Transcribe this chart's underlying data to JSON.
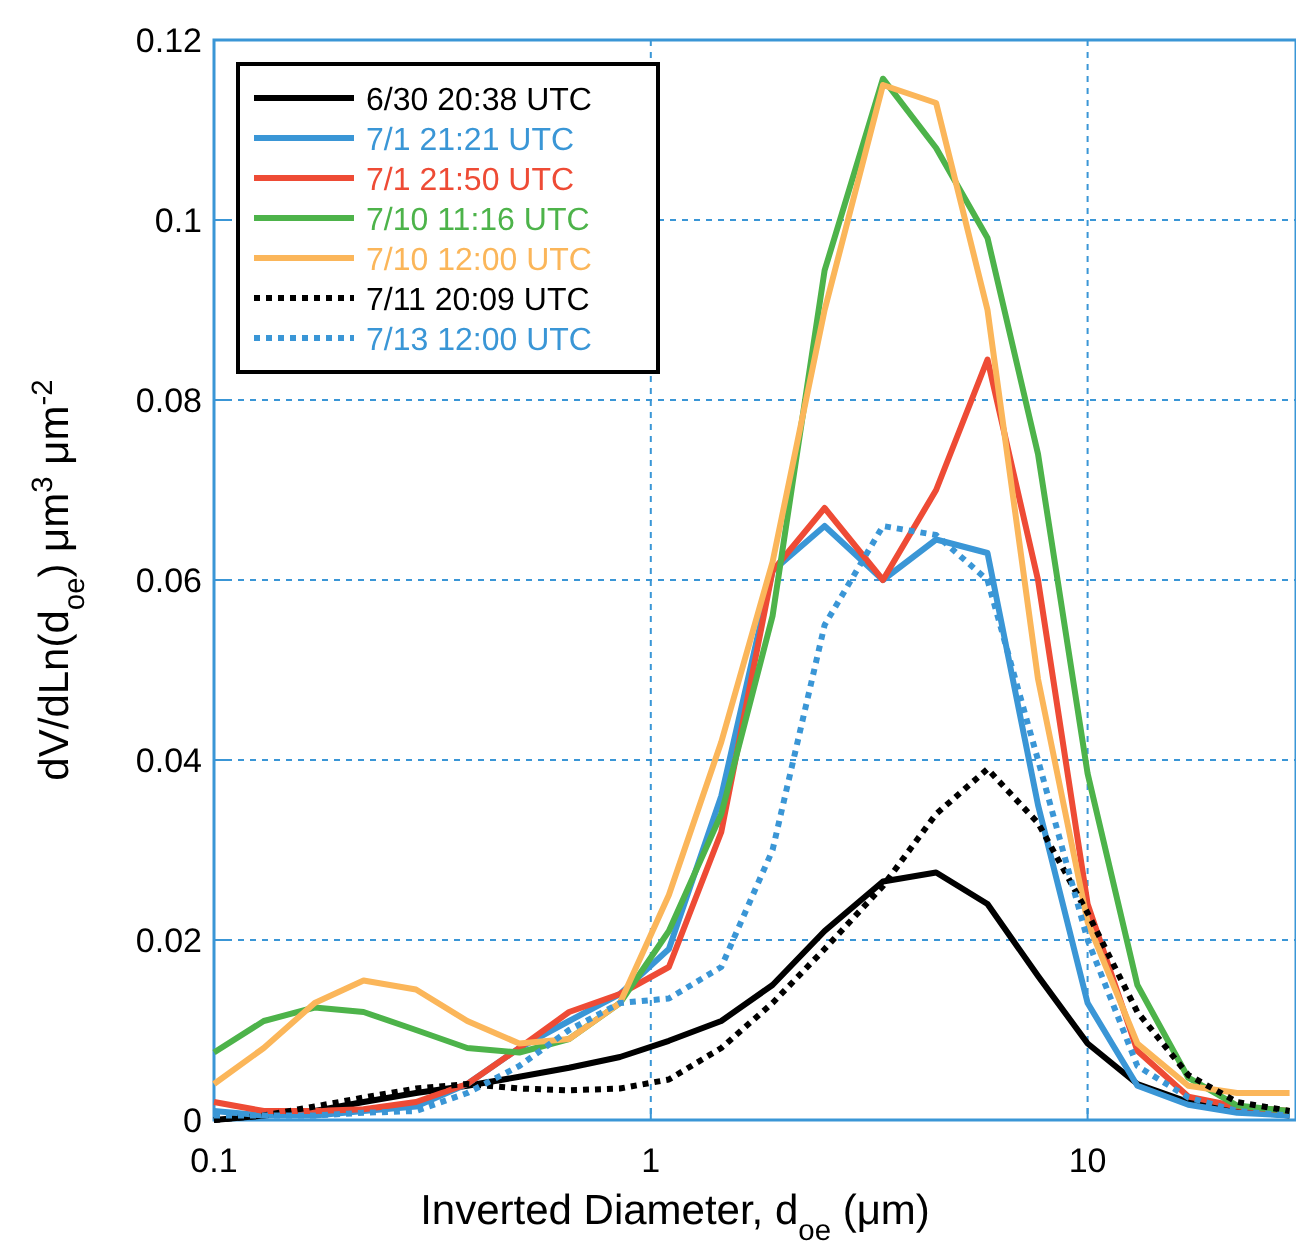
{
  "chart_data": {
    "type": "line",
    "xlabel": "Inverted Diameter, d$_{oe}$ (μm)",
    "ylabel": "dV/dLn(d$_{oe}$) μm$^{3}$ μm$^{-2}$",
    "log": "x",
    "xlim": [
      0.1,
      30
    ],
    "xticks": [
      0.1,
      1,
      10
    ],
    "ylim": [
      0,
      0.12
    ],
    "yticks": [
      0,
      0.02,
      0.04,
      0.06,
      0.08,
      0.1,
      0.12
    ],
    "grid": true,
    "legend": "top left",
    "marker": "none",
    "x": [
      0.1,
      0.13,
      0.17,
      0.22,
      0.29,
      0.38,
      0.5,
      0.65,
      0.85,
      1.1,
      1.45,
      1.9,
      2.5,
      3.4,
      4.5,
      5.9,
      7.7,
      10,
      13,
      17,
      22,
      29
    ],
    "series": [
      {
        "name": "6/30 20:38 UTC",
        "color": "#000000",
        "line_style": "solid",
        "values": [
          0,
          0.0005,
          0.001,
          0.002,
          0.003,
          0.0038,
          0.0048,
          0.0058,
          0.007,
          0.0088,
          0.011,
          0.015,
          0.021,
          0.0265,
          0.0275,
          0.024,
          0.016,
          0.0085,
          0.004,
          0.002,
          0.001,
          0.0005
        ]
      },
      {
        "name": "7/1 21:21 UTC",
        "color": "#3a96d6",
        "line_style": "solid",
        "values": [
          0.001,
          0.0005,
          0.0005,
          0.001,
          0.0015,
          0.004,
          0.008,
          0.011,
          0.014,
          0.019,
          0.036,
          0.061,
          0.066,
          0.06,
          0.0645,
          0.063,
          0.035,
          0.013,
          0.0038,
          0.0017,
          0.0008,
          0.0005
        ]
      },
      {
        "name": "7/1 21:50 UTC",
        "color": "#ee4b35",
        "line_style": "solid",
        "values": [
          0.002,
          0.001,
          0.001,
          0.0012,
          0.002,
          0.004,
          0.008,
          0.012,
          0.014,
          0.017,
          0.032,
          0.061,
          0.068,
          0.06,
          0.07,
          0.0845,
          0.06,
          0.024,
          0.0077,
          0.0026,
          0.0015,
          0.001
        ]
      },
      {
        "name": "7/10 11:16 UTC",
        "color": "#4db34a",
        "line_style": "solid",
        "values": [
          0.0075,
          0.011,
          0.0125,
          0.012,
          0.01,
          0.008,
          0.0075,
          0.009,
          0.013,
          0.021,
          0.034,
          0.056,
          0.0944,
          0.1157,
          0.108,
          0.098,
          0.074,
          0.0385,
          0.015,
          0.0047,
          0.0016,
          0.001
        ]
      },
      {
        "name": "7/10 12:00 UTC",
        "color": "#fbb65a",
        "line_style": "solid",
        "values": [
          0.004,
          0.008,
          0.013,
          0.0155,
          0.0145,
          0.011,
          0.0085,
          0.009,
          0.013,
          0.025,
          0.042,
          0.062,
          0.09,
          0.115,
          0.113,
          0.09,
          0.049,
          0.022,
          0.0085,
          0.0038,
          0.003,
          0.003
        ]
      },
      {
        "name": "7/11 20:09 UTC",
        "color": "#000000",
        "line_style": "dotted",
        "values": [
          0,
          0.0005,
          0.0015,
          0.0025,
          0.0035,
          0.004,
          0.0035,
          0.0033,
          0.0035,
          0.0045,
          0.008,
          0.013,
          0.019,
          0.026,
          0.034,
          0.039,
          0.033,
          0.023,
          0.012,
          0.005,
          0.002,
          0.001
        ]
      },
      {
        "name": "7/13 12:00 UTC",
        "color": "#3a96d6",
        "line_style": "dotted",
        "values": [
          0.0005,
          0.0005,
          0.0005,
          0.0008,
          0.001,
          0.003,
          0.006,
          0.01,
          0.013,
          0.0135,
          0.017,
          0.03,
          0.055,
          0.066,
          0.065,
          0.06,
          0.04,
          0.02,
          0.006,
          0.0025,
          0.001,
          0.0005
        ]
      }
    ]
  }
}
